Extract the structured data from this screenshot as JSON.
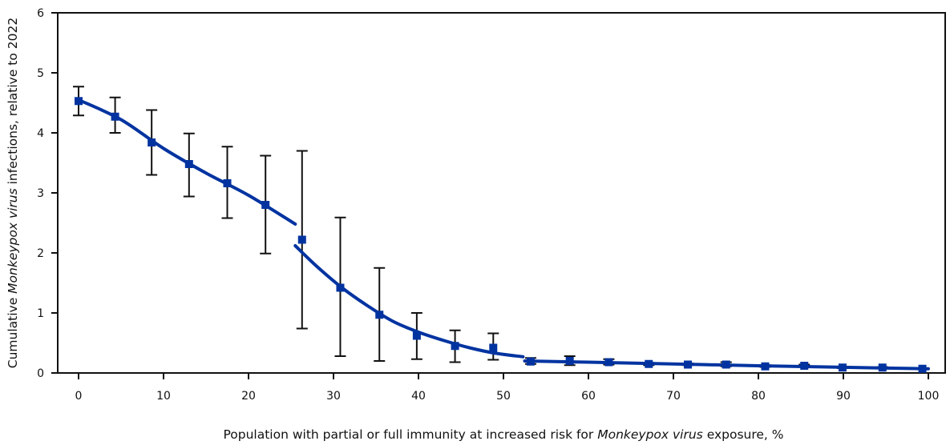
{
  "chart_data": {
    "type": "scatter",
    "title": "",
    "xlabel": {
      "before": "Population with partial or full immunity at increased risk for ",
      "italic": "Monkeypox virus",
      "after": " exposure, %"
    },
    "ylabel": {
      "before": "Cumulative ",
      "italic": "Monkeypox virus",
      "after": " infections, relative to 2022"
    },
    "xlim": [
      0,
      100
    ],
    "ylim": [
      0,
      6
    ],
    "x_ticks": [
      "0",
      "10",
      "20",
      "30",
      "40",
      "50",
      "60",
      "70",
      "80",
      "90",
      "100"
    ],
    "y_ticks": [
      "0",
      "1",
      "2",
      "3",
      "4",
      "5",
      "6"
    ],
    "grid": false,
    "colors": {
      "series": "#0033a0",
      "error_bars": "#111111",
      "axes": "#111111"
    },
    "points": [
      {
        "x": 0,
        "y": 4.53,
        "lo": 4.29,
        "hi": 4.77
      },
      {
        "x": 4.3,
        "y": 4.27,
        "lo": 4.0,
        "hi": 4.59
      },
      {
        "x": 8.6,
        "y": 3.84,
        "lo": 3.3,
        "hi": 4.38
      },
      {
        "x": 13.0,
        "y": 3.48,
        "lo": 2.94,
        "hi": 3.99
      },
      {
        "x": 17.5,
        "y": 3.16,
        "lo": 2.58,
        "hi": 3.77
      },
      {
        "x": 22.0,
        "y": 2.8,
        "lo": 1.99,
        "hi": 3.62
      },
      {
        "x": 26.3,
        "y": 2.22,
        "lo": 0.74,
        "hi": 3.7
      },
      {
        "x": 30.8,
        "y": 1.42,
        "lo": 0.28,
        "hi": 2.59
      },
      {
        "x": 35.4,
        "y": 0.97,
        "lo": 0.2,
        "hi": 1.75
      },
      {
        "x": 39.8,
        "y": 0.62,
        "lo": 0.23,
        "hi": 1.0
      },
      {
        "x": 44.3,
        "y": 0.45,
        "lo": 0.18,
        "hi": 0.71
      },
      {
        "x": 48.8,
        "y": 0.42,
        "lo": 0.22,
        "hi": 0.66
      },
      {
        "x": 53.2,
        "y": 0.19,
        "lo": 0.15,
        "hi": 0.25
      },
      {
        "x": 57.8,
        "y": 0.2,
        "lo": 0.13,
        "hi": 0.28
      },
      {
        "x": 62.4,
        "y": 0.18,
        "lo": 0.14,
        "hi": 0.23
      },
      {
        "x": 67.1,
        "y": 0.15,
        "lo": 0.13,
        "hi": 0.17
      },
      {
        "x": 71.7,
        "y": 0.14,
        "lo": 0.13,
        "hi": 0.16
      },
      {
        "x": 76.2,
        "y": 0.14,
        "lo": 0.11,
        "hi": 0.18
      },
      {
        "x": 80.8,
        "y": 0.11,
        "lo": 0.1,
        "hi": 0.13
      },
      {
        "x": 85.4,
        "y": 0.12,
        "lo": 0.11,
        "hi": 0.14
      },
      {
        "x": 89.9,
        "y": 0.09,
        "lo": 0.08,
        "hi": 0.1
      },
      {
        "x": 94.6,
        "y": 0.09,
        "lo": 0.08,
        "hi": 0.1
      },
      {
        "x": 99.3,
        "y": 0.07,
        "lo": 0.06,
        "hi": 0.08
      }
    ],
    "fit_segments": [
      [
        [
          0,
          4.55
        ],
        [
          5,
          4.22
        ],
        [
          10,
          3.74
        ],
        [
          15,
          3.33
        ],
        [
          20,
          2.96
        ],
        [
          25.5,
          2.48
        ]
      ],
      [
        [
          25.5,
          2.12
        ],
        [
          28,
          1.78
        ],
        [
          31,
          1.42
        ],
        [
          34,
          1.12
        ],
        [
          37,
          0.86
        ],
        [
          40,
          0.68
        ],
        [
          43,
          0.54
        ],
        [
          46,
          0.42
        ],
        [
          49,
          0.33
        ],
        [
          52.3,
          0.27
        ]
      ],
      [
        [
          52.5,
          0.2
        ],
        [
          60,
          0.18
        ],
        [
          70,
          0.15
        ],
        [
          80,
          0.12
        ],
        [
          90,
          0.095
        ],
        [
          100,
          0.07
        ]
      ]
    ]
  }
}
